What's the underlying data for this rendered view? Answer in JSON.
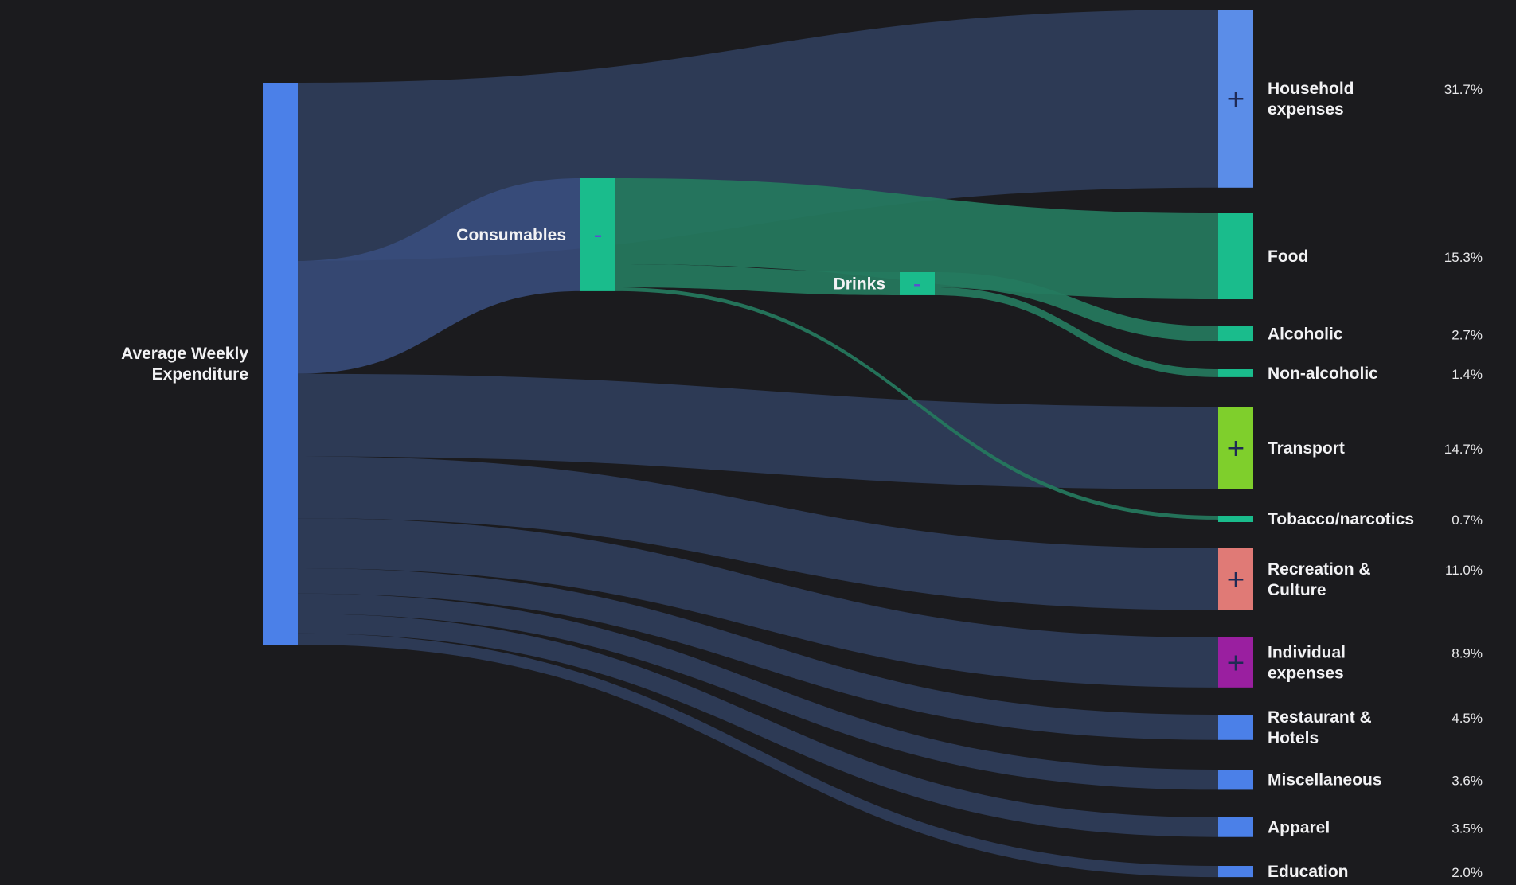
{
  "chart_data": {
    "type": "sankey",
    "colors": {
      "background": "#1b1b1e",
      "link_blue": "#2d3a55",
      "link_highlight": "#3a4f80",
      "link_green": "#25795e",
      "root": "#4b80e8",
      "consumables": "#1abc8c",
      "household": "#5b8de8",
      "transport": "#7fcf2c",
      "recreation": "#e07a76",
      "individual": "#9a1fa0",
      "plain_blue": "#4b80e8"
    },
    "nodes": [
      {
        "id": "root",
        "label": "Average Weekly Expenditure",
        "label_lines": [
          "Average Weekly",
          "Expenditure"
        ],
        "level": 0,
        "color": "#4b80e8"
      },
      {
        "id": "consumables",
        "label": "Consumables",
        "label_lines": [
          "Consumables"
        ],
        "level": 1,
        "color": "#1abc8c",
        "toggle": "-"
      },
      {
        "id": "drinks",
        "label": "Drinks",
        "label_lines": [
          "Drinks"
        ],
        "level": 2,
        "color": "#1abc8c",
        "toggle": "-"
      },
      {
        "id": "household",
        "label": "Household expenses",
        "label_lines": [
          "Household",
          "expenses"
        ],
        "level": 3,
        "value": 31.7,
        "pct": "31.7%",
        "color": "#5b8de8",
        "toggle": "+"
      },
      {
        "id": "food",
        "label": "Food",
        "label_lines": [
          "Food"
        ],
        "level": 3,
        "value": 15.3,
        "pct": "15.3%",
        "color": "#1abc8c"
      },
      {
        "id": "alcoholic",
        "label": "Alcoholic",
        "label_lines": [
          "Alcoholic"
        ],
        "level": 3,
        "value": 2.7,
        "pct": "2.7%",
        "color": "#1abc8c"
      },
      {
        "id": "nonalcoholic",
        "label": "Non-alcoholic",
        "label_lines": [
          "Non-alcoholic"
        ],
        "level": 3,
        "value": 1.4,
        "pct": "1.4%",
        "color": "#1abc8c"
      },
      {
        "id": "transport",
        "label": "Transport",
        "label_lines": [
          "Transport"
        ],
        "level": 3,
        "value": 14.7,
        "pct": "14.7%",
        "color": "#7fcf2c",
        "toggle": "+"
      },
      {
        "id": "tobacco",
        "label": "Tobacco/narcotics",
        "label_lines": [
          "Tobacco/narcotics"
        ],
        "level": 3,
        "value": 0.7,
        "pct": "0.7%",
        "color": "#1abc8c"
      },
      {
        "id": "recreation",
        "label": "Recreation & Culture",
        "label_lines": [
          "Recreation &",
          "Culture"
        ],
        "level": 3,
        "value": 11.0,
        "pct": "11.0%",
        "color": "#e07a76",
        "toggle": "+"
      },
      {
        "id": "individual",
        "label": "Individual expenses",
        "label_lines": [
          "Individual",
          "expenses"
        ],
        "level": 3,
        "value": 8.9,
        "pct": "8.9%",
        "color": "#9a1fa0",
        "toggle": "+"
      },
      {
        "id": "restaurant",
        "label": "Restaurant & Hotels",
        "label_lines": [
          "Restaurant &",
          "Hotels"
        ],
        "level": 3,
        "value": 4.5,
        "pct": "4.5%",
        "color": "#4b80e8"
      },
      {
        "id": "misc",
        "label": "Miscellaneous",
        "label_lines": [
          "Miscellaneous"
        ],
        "level": 3,
        "value": 3.6,
        "pct": "3.6%",
        "color": "#4b80e8"
      },
      {
        "id": "apparel",
        "label": "Apparel",
        "label_lines": [
          "Apparel"
        ],
        "level": 3,
        "value": 3.5,
        "pct": "3.5%",
        "color": "#4b80e8"
      },
      {
        "id": "education",
        "label": "Education",
        "label_lines": [
          "Education"
        ],
        "level": 3,
        "value": 2.0,
        "pct": "2.0%",
        "color": "#4b80e8"
      }
    ],
    "links": [
      {
        "source": "root",
        "target": "household",
        "value": 31.7,
        "color": "#2d3a55"
      },
      {
        "source": "root",
        "target": "consumables",
        "value": 20.1,
        "color": "#2d3a55",
        "highlight": true
      },
      {
        "source": "root",
        "target": "transport",
        "value": 14.7,
        "color": "#2d3a55"
      },
      {
        "source": "root",
        "target": "recreation",
        "value": 11.0,
        "color": "#2d3a55"
      },
      {
        "source": "root",
        "target": "individual",
        "value": 8.9,
        "color": "#2d3a55"
      },
      {
        "source": "root",
        "target": "restaurant",
        "value": 4.5,
        "color": "#2d3a55"
      },
      {
        "source": "root",
        "target": "misc",
        "value": 3.6,
        "color": "#2d3a55"
      },
      {
        "source": "root",
        "target": "apparel",
        "value": 3.5,
        "color": "#2d3a55"
      },
      {
        "source": "root",
        "target": "education",
        "value": 2.0,
        "color": "#2d3a55"
      },
      {
        "source": "consumables",
        "target": "food",
        "value": 15.3,
        "color": "#25795e"
      },
      {
        "source": "consumables",
        "target": "drinks",
        "value": 4.1,
        "color": "#25795e"
      },
      {
        "source": "consumables",
        "target": "tobacco",
        "value": 0.7,
        "color": "#25795e"
      },
      {
        "source": "drinks",
        "target": "alcoholic",
        "value": 2.7,
        "color": "#25795e"
      },
      {
        "source": "drinks",
        "target": "nonalcoholic",
        "value": 1.4,
        "color": "#25795e"
      }
    ]
  }
}
